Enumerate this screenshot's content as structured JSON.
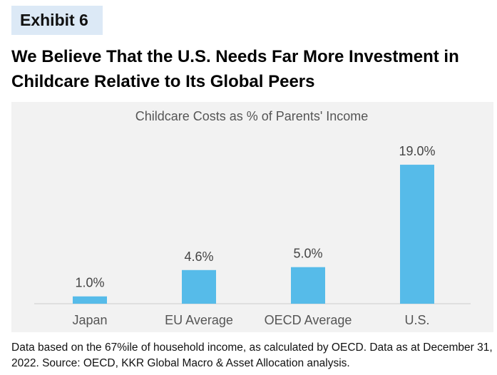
{
  "exhibit": {
    "label": "Exhibit 6"
  },
  "headline": "We Believe That the U.S. Needs Far More Investment in Childcare Relative to Its Global Peers",
  "footnote": "Data based on the 67%ile of household income, as calculated by OECD. Data as at December 31, 2022. Source: OECD, KKR Global Macro & Asset Allocation analysis.",
  "colors": {
    "bar": "#56bbe9",
    "panel": "#f2f2f2",
    "badge": "#dce9f6",
    "axis_text": "#555555",
    "value_text": "#444444",
    "baseline": "#cccccc"
  },
  "chart_data": {
    "type": "bar",
    "title": "Childcare Costs as % of Parents' Income",
    "categories": [
      "Japan",
      "EU Average",
      "OECD Average",
      "U.S."
    ],
    "values": [
      1.0,
      4.6,
      5.0,
      19.0
    ],
    "value_labels": [
      "1.0%",
      "4.6%",
      "5.0%",
      "19.0%"
    ],
    "xlabel": "",
    "ylabel": "",
    "ylim": [
      0,
      20
    ],
    "grid": false,
    "legend": "none"
  }
}
